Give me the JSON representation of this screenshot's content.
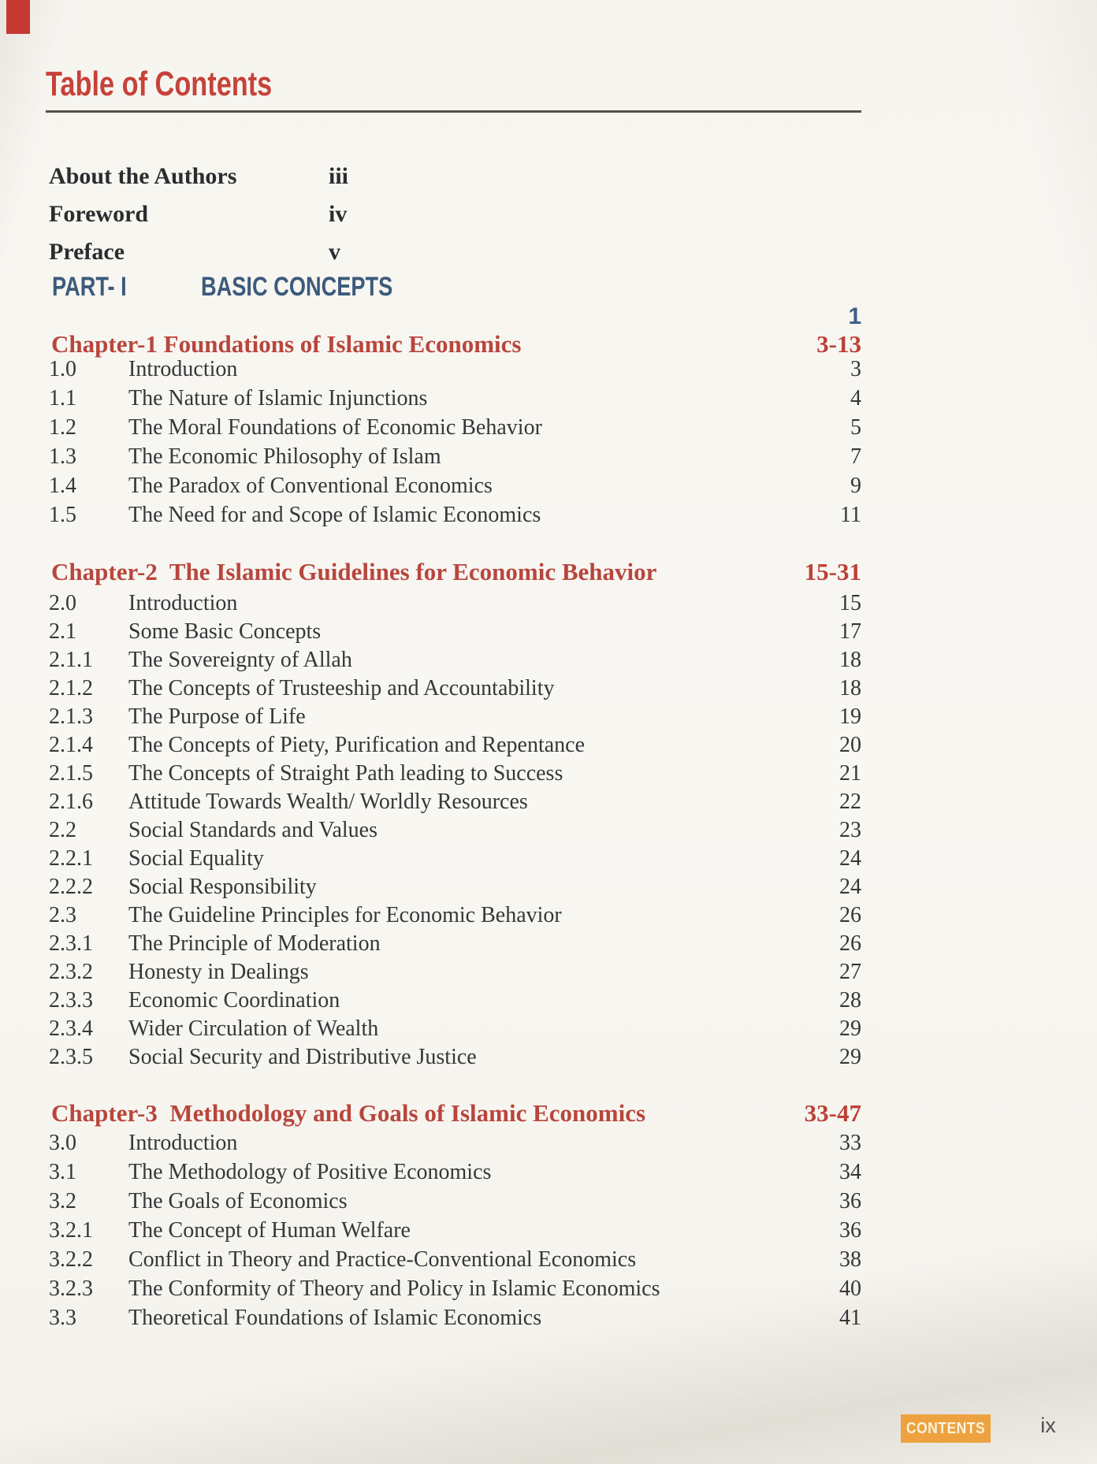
{
  "page": {
    "title": "Table of Contents",
    "footer_badge": "CONTENTS",
    "page_label": "ix"
  },
  "front_matter": [
    {
      "label": "About the Authors",
      "page": "iii"
    },
    {
      "label": "Foreword",
      "page": "iv"
    },
    {
      "label": "Preface",
      "page": "v"
    }
  ],
  "part": {
    "label": "PART- I",
    "title": "BASIC CONCEPTS",
    "page": "1"
  },
  "chapters": [
    {
      "title": "Chapter-1 Foundations of Islamic Economics",
      "pages": "3-13",
      "items": [
        {
          "num": "1.0",
          "title": "Introduction",
          "page": "3"
        },
        {
          "num": "1.1",
          "title": "The Nature of Islamic Injunctions",
          "page": "4"
        },
        {
          "num": "1.2",
          "title": "The Moral Foundations of Economic Behavior",
          "page": "5"
        },
        {
          "num": "1.3",
          "title": "The Economic Philosophy of Islam",
          "page": "7"
        },
        {
          "num": "1.4",
          "title": "The Paradox of Conventional Economics",
          "page": "9"
        },
        {
          "num": "1.5",
          "title": "The Need for and Scope of Islamic Economics",
          "page": "11"
        }
      ]
    },
    {
      "title": "Chapter-2  The Islamic Guidelines for Economic Behavior",
      "pages": "15-31",
      "items": [
        {
          "num": "2.0",
          "title": "Introduction",
          "page": "15"
        },
        {
          "num": "2.1",
          "title": "Some Basic Concepts",
          "page": "17"
        },
        {
          "num": "2.1.1",
          "title": "The Sovereignty of Allah",
          "page": "18"
        },
        {
          "num": "2.1.2",
          "title": "The Concepts of Trusteeship and Accountability",
          "page": "18"
        },
        {
          "num": "2.1.3",
          "title": "The Purpose of Life",
          "page": "19"
        },
        {
          "num": "2.1.4",
          "title": "The Concepts of Piety, Purification and Repentance",
          "page": "20"
        },
        {
          "num": "2.1.5",
          "title": "The Concepts of Straight Path leading to Success",
          "page": "21"
        },
        {
          "num": "2.1.6",
          "title": "Attitude Towards Wealth/ Worldly Resources",
          "page": "22"
        },
        {
          "num": "2.2",
          "title": "Social Standards and Values",
          "page": "23"
        },
        {
          "num": "2.2.1",
          "title": "Social Equality",
          "page": "24"
        },
        {
          "num": "2.2.2",
          "title": "Social Responsibility",
          "page": "24"
        },
        {
          "num": "2.3",
          "title": "The Guideline Principles for Economic Behavior",
          "page": "26"
        },
        {
          "num": "2.3.1",
          "title": "The Principle of Moderation",
          "page": "26"
        },
        {
          "num": "2.3.2",
          "title": "Honesty in Dealings",
          "page": "27"
        },
        {
          "num": "2.3.3",
          "title": "Economic Coordination",
          "page": "28"
        },
        {
          "num": "2.3.4",
          "title": "Wider Circulation of Wealth",
          "page": "29"
        },
        {
          "num": "2.3.5",
          "title": "Social Security and Distributive Justice",
          "page": "29"
        }
      ]
    },
    {
      "title": "Chapter-3  Methodology and Goals of Islamic Economics",
      "pages": "33-47",
      "items": [
        {
          "num": "3.0",
          "title": "Introduction",
          "page": "33"
        },
        {
          "num": "3.1",
          "title": "The Methodology of Positive Economics",
          "page": "34"
        },
        {
          "num": "3.2",
          "title": "The Goals of Economics",
          "page": "36"
        },
        {
          "num": "3.2.1",
          "title": "The Concept of Human Welfare",
          "page": "36"
        },
        {
          "num": "3.2.2",
          "title": "Conflict in Theory and Practice-Conventional Economics",
          "page": "38"
        },
        {
          "num": "3.2.3",
          "title": "The Conformity of Theory and Policy in Islamic Economics",
          "page": "40"
        },
        {
          "num": "3.3",
          "title": "Theoretical Foundations of Islamic Economics",
          "page": "41"
        }
      ]
    }
  ],
  "colors": {
    "title_red": "#c6423a",
    "chapter_red": "#b8463d",
    "navy_blue": "#3c5a7c",
    "badge_orange": "#eda23f",
    "body_text": "#36363a",
    "paper": "#f8f6f1"
  }
}
